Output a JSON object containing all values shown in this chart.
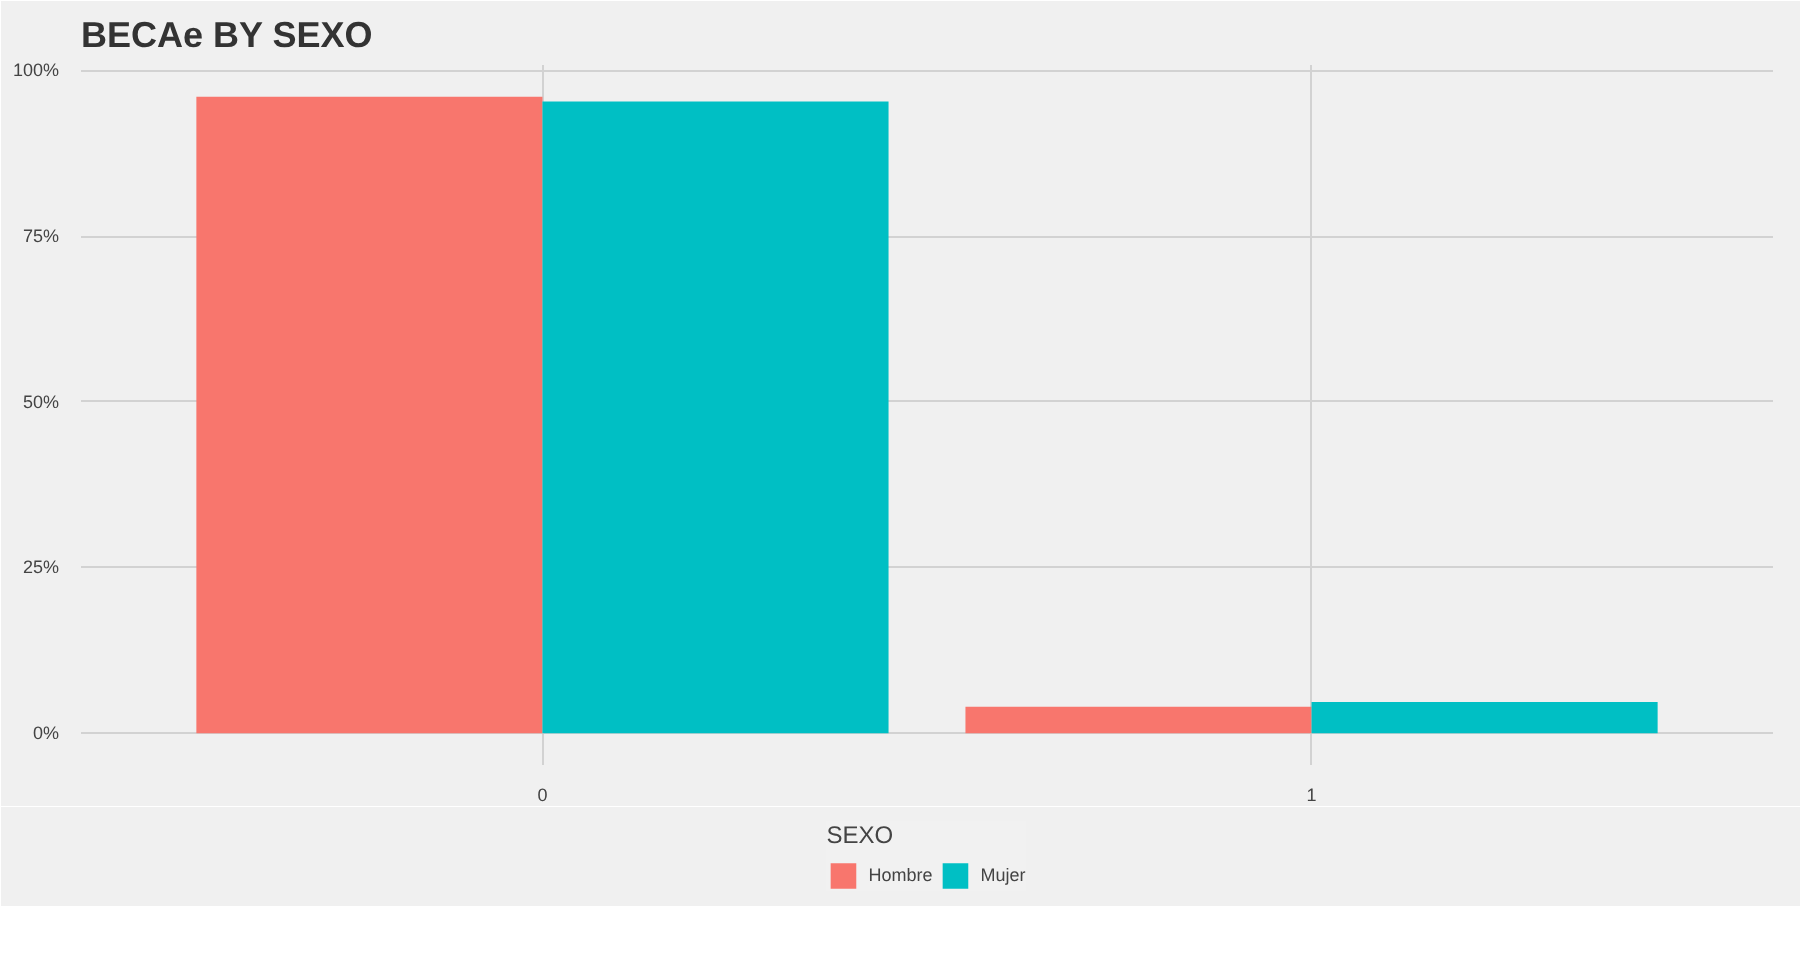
{
  "chart_data": {
    "type": "bar",
    "title": "BECAe BY SEXO",
    "legend_title": "SEXO",
    "categories": [
      "0",
      "1"
    ],
    "series": [
      {
        "name": "Hombre",
        "color": "#f8766d",
        "values": [
          96.0,
          4.0
        ]
      },
      {
        "name": "Mujer",
        "color": "#00bfc4",
        "values": [
          95.3,
          4.7
        ]
      }
    ],
    "ylim": [
      -4.8,
      100.8
    ],
    "yticks": [
      {
        "value": 0,
        "label": "0%"
      },
      {
        "value": 25,
        "label": "25%"
      },
      {
        "value": 50,
        "label": "50%"
      },
      {
        "value": 75,
        "label": "75%"
      },
      {
        "value": 100,
        "label": "100%"
      }
    ],
    "grid": true,
    "legend": "bottom"
  }
}
